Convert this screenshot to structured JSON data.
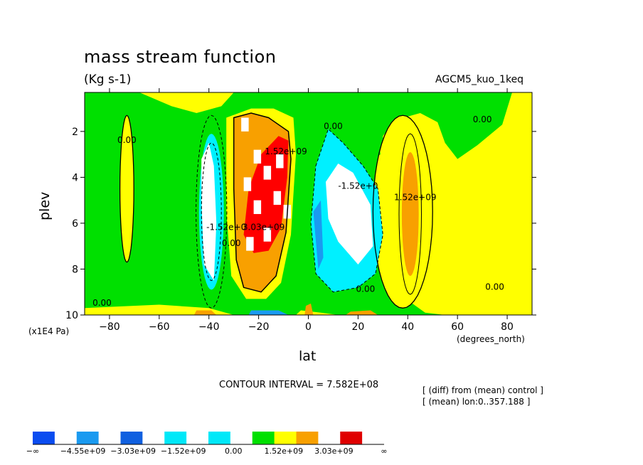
{
  "title": "mass stream function",
  "units": "(Kg s-1)",
  "dataset": "AGCM5_kuo_1keq",
  "interval_text": "CONTOUR INTERVAL = 7.582E+08",
  "notes": [
    "[ (diff) from (mean) control ]",
    "[ (mean) lon:0..357.188 ]"
  ],
  "chart_data": {
    "type": "heatmap",
    "title": "mass stream function",
    "subtitle": "(Kg s-1)",
    "xlabel": "lat",
    "ylabel": "plev",
    "x_unit": "(degrees_north)",
    "y_unit": "(x1E4 Pa)",
    "xlim": [
      -90,
      90
    ],
    "ylim": [
      10,
      0.3
    ],
    "x_ticks": [
      -80,
      -60,
      -40,
      -20,
      0,
      20,
      40,
      60,
      80
    ],
    "x_tick_labels": [
      "−80",
      "−60",
      "−40",
      "−20",
      "0",
      "20",
      "40",
      "60",
      "80"
    ],
    "y_ticks": [
      2,
      4,
      6,
      8,
      10
    ],
    "contour_interval": 758200000,
    "contour_labels": [
      {
        "text": "0.00",
        "lat": -73,
        "plev": 2.5
      },
      {
        "text": "0.00",
        "lat": 10,
        "plev": 1.9
      },
      {
        "text": "0.00",
        "lat": 70,
        "plev": 1.6
      },
      {
        "text": "0.00",
        "lat": -83,
        "plev": 9.6
      },
      {
        "text": "0.00",
        "lat": 23,
        "plev": 9.0
      },
      {
        "text": "0.00",
        "lat": 75,
        "plev": 8.9
      },
      {
        "text": "0.00",
        "lat": -31,
        "plev": 7.0
      },
      {
        "text": "1.52e+09",
        "lat": -9,
        "plev": 3.0
      },
      {
        "text": "3.03e+09",
        "lat": -18,
        "plev": 6.3
      },
      {
        "text": "-1.52e+0",
        "lat": 20,
        "plev": 4.5
      },
      {
        "text": "1.52e+09",
        "lat": 43,
        "plev": 5.0
      },
      {
        "text": "-1.52e+0",
        "lat": -33,
        "plev": 6.3
      }
    ],
    "colorbar": {
      "labels": [
        "−∞",
        "−4.55e+09",
        "−3.03e+09",
        "−1.52e+09",
        "0.00",
        "1.52e+09",
        "3.03e+09",
        "∞"
      ],
      "colors": [
        "#0a4cf0",
        "#ffffff",
        "#1a9af0",
        "#ffffff",
        "#1060e0",
        "#ffffff",
        "#00e8f8",
        "#ffffff",
        "#00e8f8",
        "#ffffff",
        "#00e000",
        "#ffff00",
        "#f8a000",
        "#ffffff",
        "#e00000",
        "#ffffff"
      ]
    },
    "colors": {
      "green": "#00e000",
      "yellow": "#ffff00",
      "orange": "#f8a000",
      "red": "#ff0000",
      "cyan": "#00f0ff",
      "white": "#ffffff",
      "blue": "#1a9af0",
      "darkblue": "#0050e0"
    }
  }
}
